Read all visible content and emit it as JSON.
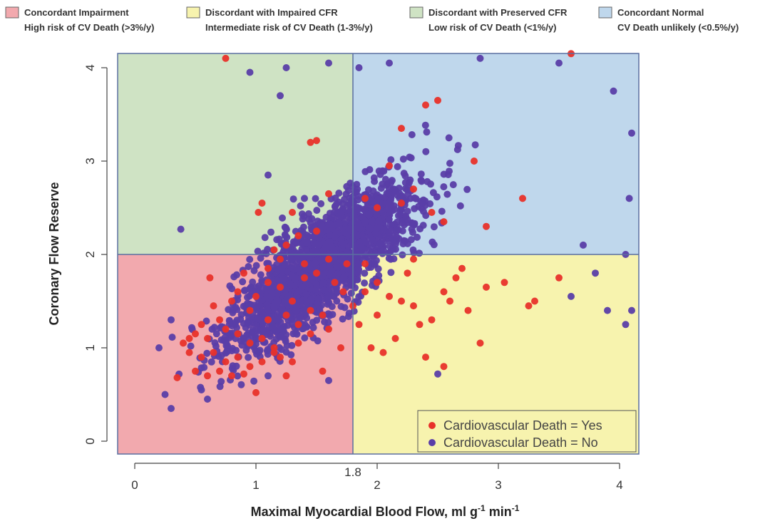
{
  "chart_data": {
    "type": "scatter",
    "title": "",
    "xlabel": "Maximal Myocardial Blood Flow, ml g",
    "xlabel_sup1": "-1",
    "xlabel_mid": " min",
    "xlabel_sup2": "-1",
    "ylabel": "Coronary  Flow  Reserve",
    "xlim": [
      -0.15,
      4.15
    ],
    "ylim": [
      -0.2,
      4.2
    ],
    "x_ticks": [
      "0",
      "1",
      "2",
      "3",
      "4"
    ],
    "y_ticks": [
      "0",
      "1",
      "2",
      "3",
      "4"
    ],
    "x_threshold": 1.8,
    "x_threshold_label": "1.8",
    "y_threshold": 2,
    "quadrant_legend": [
      {
        "name": "concordant-impairment",
        "color": "#f2a9ae",
        "line1": "Concordant Impairment",
        "line2": "High risk of CV Death (>3%/y)"
      },
      {
        "name": "discordant-impaired-cfr",
        "color": "#f7f3ae",
        "line1": "Discordant with Impaired CFR",
        "line2": "Intermediate risk of CV Death (1-3%/y)"
      },
      {
        "name": "discordant-preserved-cfr",
        "color": "#cfe3c4",
        "line1": "Discordant with Preserved CFR",
        "line2": "Low risk of CV Death (<1%/y)"
      },
      {
        "name": "concordant-normal",
        "color": "#bfd7ec",
        "line1": "Concordant Normal",
        "line2": "CV Death unlikely (<0.5%/y)"
      }
    ],
    "series": [
      {
        "name": "Cardiovascular Death = Yes",
        "color": "#e8312a",
        "points": [
          [
            0.75,
            4.1
          ],
          [
            2.5,
            3.65
          ],
          [
            2.4,
            3.6
          ],
          [
            1.45,
            3.2
          ],
          [
            1.5,
            3.22
          ],
          [
            2.2,
            3.35
          ],
          [
            2.8,
            3.0
          ],
          [
            2.1,
            2.95
          ],
          [
            2.3,
            2.7
          ],
          [
            3.2,
            2.6
          ],
          [
            1.6,
            2.65
          ],
          [
            1.05,
            2.55
          ],
          [
            1.02,
            2.45
          ],
          [
            1.3,
            2.45
          ],
          [
            2.0,
            2.5
          ],
          [
            2.45,
            2.45
          ],
          [
            2.9,
            2.3
          ],
          [
            1.9,
            2.6
          ],
          [
            2.2,
            2.55
          ],
          [
            2.55,
            2.35
          ],
          [
            1.25,
            2.1
          ],
          [
            1.35,
            2.2
          ],
          [
            1.15,
            2.05
          ],
          [
            0.9,
            1.8
          ],
          [
            0.62,
            1.75
          ],
          [
            0.85,
            1.6
          ],
          [
            1.1,
            1.7
          ],
          [
            1.2,
            1.65
          ],
          [
            1.4,
            1.75
          ],
          [
            1.5,
            1.8
          ],
          [
            1.65,
            1.7
          ],
          [
            1.72,
            1.6
          ],
          [
            1.3,
            1.5
          ],
          [
            1.0,
            1.55
          ],
          [
            0.95,
            1.4
          ],
          [
            1.1,
            1.3
          ],
          [
            1.25,
            1.35
          ],
          [
            1.45,
            1.4
          ],
          [
            1.55,
            1.35
          ],
          [
            1.35,
            1.25
          ],
          [
            0.7,
            1.3
          ],
          [
            0.55,
            1.25
          ],
          [
            0.5,
            1.15
          ],
          [
            0.45,
            1.1
          ],
          [
            0.6,
            1.1
          ],
          [
            0.75,
            1.2
          ],
          [
            0.85,
            1.15
          ],
          [
            0.95,
            1.05
          ],
          [
            1.05,
            1.1
          ],
          [
            1.15,
            1.0
          ],
          [
            0.4,
            1.05
          ],
          [
            0.45,
            0.95
          ],
          [
            0.55,
            0.9
          ],
          [
            0.65,
            0.95
          ],
          [
            0.75,
            0.85
          ],
          [
            0.85,
            0.9
          ],
          [
            0.95,
            0.8
          ],
          [
            1.05,
            0.85
          ],
          [
            1.2,
            0.9
          ],
          [
            1.3,
            0.85
          ],
          [
            0.5,
            0.75
          ],
          [
            0.6,
            0.7
          ],
          [
            0.7,
            0.75
          ],
          [
            0.8,
            0.7
          ],
          [
            0.9,
            0.72
          ],
          [
            1.25,
            0.7
          ],
          [
            1.55,
            0.75
          ],
          [
            0.35,
            0.68
          ],
          [
            1.0,
            0.52
          ],
          [
            1.15,
            0.95
          ],
          [
            1.35,
            1.05
          ],
          [
            1.45,
            1.15
          ],
          [
            1.6,
            1.2
          ],
          [
            1.7,
            1.0
          ],
          [
            1.8,
            1.45
          ],
          [
            1.9,
            1.6
          ],
          [
            2.0,
            1.7
          ],
          [
            2.1,
            1.55
          ],
          [
            2.2,
            1.5
          ],
          [
            2.3,
            1.45
          ],
          [
            2.45,
            1.3
          ],
          [
            2.6,
            1.5
          ],
          [
            2.75,
            1.4
          ],
          [
            2.9,
            1.65
          ],
          [
            3.05,
            1.7
          ],
          [
            3.3,
            1.5
          ],
          [
            3.5,
            1.75
          ],
          [
            2.55,
            1.6
          ],
          [
            2.65,
            1.75
          ],
          [
            2.35,
            1.25
          ],
          [
            2.15,
            1.1
          ],
          [
            2.05,
            0.95
          ],
          [
            1.95,
            1.0
          ],
          [
            2.0,
            1.35
          ],
          [
            1.85,
            1.25
          ],
          [
            2.25,
            1.8
          ],
          [
            2.7,
            1.85
          ],
          [
            1.9,
            1.9
          ],
          [
            2.4,
            0.9
          ],
          [
            2.85,
            1.05
          ],
          [
            3.25,
            1.45
          ],
          [
            1.75,
            1.9
          ],
          [
            1.6,
            1.95
          ],
          [
            2.3,
            1.95
          ],
          [
            0.65,
            1.45
          ],
          [
            0.8,
            1.5
          ],
          [
            1.1,
            1.85
          ],
          [
            1.4,
            1.9
          ],
          [
            1.2,
            1.95
          ],
          [
            1.5,
            2.25
          ],
          [
            3.6,
            4.15
          ],
          [
            2.55,
            0.8
          ]
        ]
      },
      {
        "name": "Cardiovascular Death = No",
        "color": "#5a3ea8",
        "generator": {
          "count": 1900,
          "seed": 7
        },
        "points": [
          [
            1.25,
            4.0
          ],
          [
            0.95,
            3.95
          ],
          [
            1.6,
            4.05
          ],
          [
            1.85,
            4.0
          ],
          [
            2.1,
            4.05
          ],
          [
            2.85,
            4.1
          ],
          [
            3.5,
            4.05
          ],
          [
            3.95,
            3.75
          ],
          [
            1.2,
            3.7
          ],
          [
            0.38,
            2.27
          ],
          [
            4.1,
            3.3
          ],
          [
            4.08,
            2.6
          ],
          [
            4.05,
            2.0
          ],
          [
            4.1,
            1.4
          ],
          [
            4.05,
            1.25
          ],
          [
            3.9,
            1.4
          ],
          [
            3.8,
            1.8
          ],
          [
            3.7,
            2.1
          ],
          [
            3.6,
            1.55
          ],
          [
            2.5,
            0.72
          ],
          [
            0.25,
            0.5
          ],
          [
            0.3,
            0.35
          ],
          [
            0.6,
            0.45
          ],
          [
            0.55,
            0.55
          ],
          [
            0.3,
            1.3
          ],
          [
            0.2,
            1.0
          ],
          [
            1.1,
            0.7
          ],
          [
            1.6,
            0.65
          ],
          [
            1.4,
            2.6
          ],
          [
            1.1,
            2.85
          ]
        ]
      }
    ],
    "inner_legend_location": "bottom-right"
  }
}
